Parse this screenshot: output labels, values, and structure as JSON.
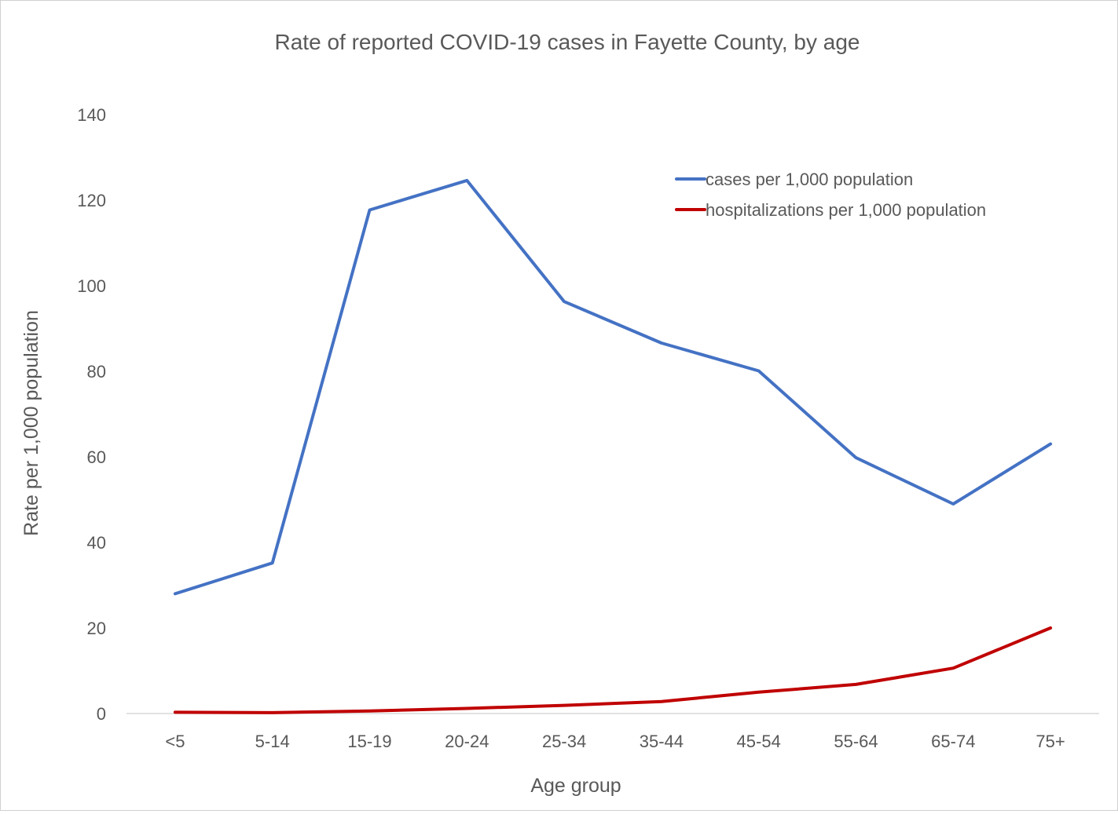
{
  "chart_data": {
    "type": "line",
    "title": "Rate of reported COVID-19 cases in Fayette County, by age",
    "xlabel": "Age group",
    "ylabel": "Rate per 1,000 population",
    "categories": [
      "<5",
      "5-14",
      "15-19",
      "20-24",
      "25-34",
      "35-44",
      "45-54",
      "55-64",
      "65-74",
      "75+"
    ],
    "ylim": [
      0,
      140
    ],
    "yticks": [
      "0",
      "20",
      "40",
      "60",
      "80",
      "100",
      "120",
      "140"
    ],
    "grid": false,
    "legend_position": "top-right",
    "series": [
      {
        "name": "cases per 1,000 population",
        "color": "#4472c4",
        "values": [
          28,
          35.2,
          117.7,
          124.6,
          96.3,
          86.6,
          80.1,
          59.8,
          49,
          63
        ]
      },
      {
        "name": "hospitalizations per 1,000 population",
        "color": "#c00000",
        "values": [
          0.3,
          0.2,
          0.6,
          1.2,
          1.9,
          2.8,
          5,
          6.8,
          10.6,
          20
        ]
      }
    ]
  }
}
